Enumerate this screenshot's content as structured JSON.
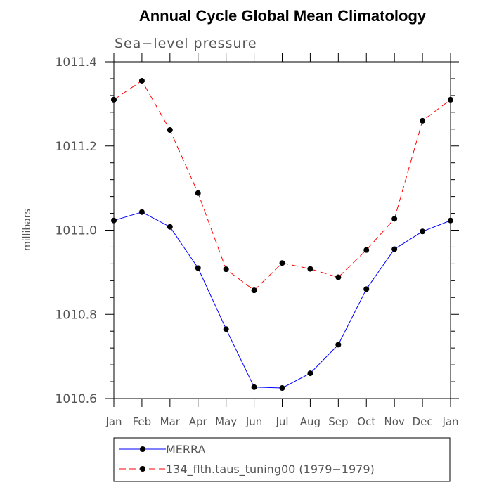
{
  "chart_data": {
    "type": "line",
    "title": "Annual Cycle Global Mean Climatology",
    "subtitle": "Sea−level pressure",
    "ylabel": "millibars",
    "xlabel": "",
    "ylim": [
      1010.6,
      1011.4
    ],
    "yticks": [
      1010.6,
      1010.8,
      1011.0,
      1011.2,
      1011.4
    ],
    "ytick_labels": [
      "1010.6",
      "1010.8",
      "1011.0",
      "1011.2",
      "1011.4"
    ],
    "categories": [
      "Jan",
      "Feb",
      "Mar",
      "Apr",
      "May",
      "Jun",
      "Jul",
      "Aug",
      "Sep",
      "Oct",
      "Nov",
      "Dec",
      "Jan"
    ],
    "grid": false,
    "legend_position": "bottom",
    "series": [
      {
        "name": "MERRA",
        "legend_label": "MERRA",
        "color": "#0000ff",
        "dash": "solid",
        "values": [
          1011.023,
          1011.043,
          1011.008,
          1010.91,
          1010.765,
          1010.627,
          1010.625,
          1010.66,
          1010.728,
          1010.86,
          1010.955,
          1010.997,
          1011.023
        ]
      },
      {
        "name": "134_flth.taus_tuning00",
        "legend_label": "134_flth.taus_tuning00 (1979−1979)",
        "color": "#ff0000",
        "dash": "dashed",
        "values": [
          1011.31,
          1011.355,
          1011.238,
          1011.088,
          1010.907,
          1010.857,
          1010.922,
          1010.908,
          1010.888,
          1010.953,
          1011.027,
          1011.26,
          1011.31
        ]
      }
    ]
  }
}
